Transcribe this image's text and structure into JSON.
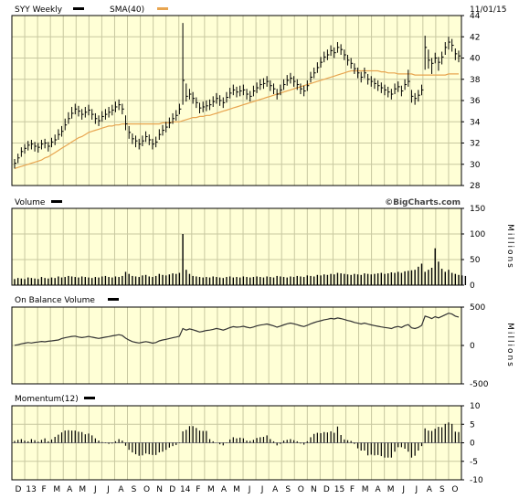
{
  "header": {
    "ticker_label": "SYY Weekly",
    "sma_label": "SMA(40)",
    "date": "11/01/15"
  },
  "watermark": "©BigCharts.com",
  "colors": {
    "panel_bg": "#ffffd6",
    "grid": "#c8c8a0",
    "price": "#000000",
    "sma": "#e8a550",
    "volume": "#000000",
    "border": "#000000"
  },
  "x_axis": {
    "labels": [
      "D",
      "13",
      "F",
      "M",
      "A",
      "M",
      "J",
      "J",
      "A",
      "S",
      "O",
      "N",
      "D",
      "14",
      "F",
      "M",
      "A",
      "M",
      "J",
      "J",
      "A",
      "S",
      "O",
      "N",
      "D",
      "15",
      "F",
      "M",
      "A",
      "M",
      "J",
      "J",
      "A",
      "S",
      "O"
    ]
  },
  "chart_data": [
    {
      "type": "ohlc",
      "title": "SYY Weekly",
      "ylim": [
        28,
        44
      ],
      "yticks": [
        28,
        30,
        32,
        34,
        36,
        38,
        40,
        42,
        44
      ],
      "ytick_labels": [
        "28",
        "30",
        "32",
        "34",
        "36",
        "38",
        "40",
        "42",
        "44"
      ],
      "series": [
        {
          "name": "SYY Weekly",
          "close": [
            30.1,
            30.6,
            31.2,
            31.5,
            31.8,
            31.9,
            31.7,
            31.6,
            31.9,
            32.0,
            31.7,
            32.1,
            32.3,
            32.8,
            33.1,
            33.7,
            34.3,
            34.8,
            35.2,
            35.0,
            34.7,
            34.9,
            35.1,
            34.7,
            34.3,
            34.1,
            34.5,
            34.7,
            34.9,
            35.1,
            35.4,
            35.6,
            35.2,
            33.8,
            33.0,
            32.4,
            32.2,
            31.9,
            32.2,
            32.6,
            32.3,
            31.9,
            32.1,
            32.8,
            33.2,
            33.5,
            33.9,
            34.3,
            34.6,
            35.2,
            37.9,
            36.4,
            36.6,
            36.2,
            35.8,
            35.3,
            35.4,
            35.5,
            35.6,
            35.9,
            36.2,
            36.0,
            35.8,
            36.3,
            36.7,
            37.0,
            36.8,
            36.9,
            37.0,
            36.6,
            36.4,
            36.9,
            37.2,
            37.5,
            37.6,
            37.8,
            37.4,
            37.1,
            36.6,
            37.0,
            37.5,
            37.9,
            38.1,
            37.8,
            37.5,
            37.1,
            36.9,
            37.4,
            38.2,
            38.6,
            39.1,
            39.6,
            40.1,
            40.3,
            40.7,
            40.5,
            41.0,
            40.8,
            40.3,
            39.8,
            39.5,
            39.0,
            38.6,
            38.2,
            38.6,
            38.0,
            37.8,
            37.6,
            37.4,
            37.2,
            37.0,
            36.8,
            36.6,
            37.1,
            37.3,
            36.9,
            37.5,
            37.8,
            36.4,
            36.2,
            36.5,
            37.0,
            41.0,
            39.8,
            39.5,
            40.0,
            39.6,
            40.1,
            41.0,
            41.5,
            41.2,
            40.4,
            40.2
          ],
          "high": [
            30.5,
            31.0,
            31.6,
            31.9,
            32.2,
            32.3,
            32.1,
            32.0,
            32.3,
            32.4,
            32.1,
            32.5,
            32.8,
            33.3,
            33.6,
            34.3,
            34.9,
            35.4,
            35.7,
            35.5,
            35.2,
            35.4,
            35.6,
            35.2,
            34.8,
            34.6,
            35.0,
            35.2,
            35.4,
            35.6,
            35.9,
            36.1,
            35.7,
            34.6,
            33.6,
            32.9,
            32.7,
            32.4,
            32.7,
            33.1,
            32.8,
            32.4,
            32.6,
            33.3,
            33.7,
            34.0,
            34.4,
            34.8,
            35.1,
            35.7,
            43.3,
            37.6,
            37.1,
            36.8,
            36.3,
            35.8,
            35.9,
            36.0,
            36.1,
            36.4,
            36.7,
            36.5,
            36.3,
            36.8,
            37.2,
            37.5,
            37.3,
            37.4,
            37.5,
            37.1,
            36.9,
            37.4,
            37.7,
            38.0,
            38.1,
            38.3,
            37.9,
            37.6,
            37.1,
            37.5,
            38.0,
            38.4,
            38.6,
            38.3,
            38.0,
            37.6,
            37.4,
            37.9,
            38.7,
            39.1,
            39.6,
            40.1,
            40.6,
            40.8,
            41.2,
            41.0,
            41.5,
            41.3,
            40.8,
            40.3,
            40.0,
            39.5,
            39.1,
            38.7,
            39.1,
            38.5,
            38.3,
            38.1,
            37.9,
            37.7,
            37.5,
            37.3,
            37.1,
            37.6,
            37.8,
            37.4,
            38.0,
            38.9,
            37.0,
            36.7,
            37.0,
            37.5,
            42.1,
            40.8,
            40.0,
            40.5,
            40.1,
            40.6,
            41.5,
            42.0,
            41.8,
            40.9,
            40.7
          ],
          "low": [
            29.6,
            30.1,
            30.7,
            31.0,
            31.3,
            31.4,
            31.2,
            31.1,
            31.4,
            31.5,
            31.2,
            31.6,
            31.8,
            32.3,
            32.6,
            33.2,
            33.8,
            34.3,
            34.7,
            34.5,
            34.2,
            34.4,
            34.6,
            34.2,
            33.8,
            33.6,
            34.0,
            34.2,
            34.4,
            34.6,
            34.9,
            35.1,
            34.7,
            33.2,
            32.4,
            31.9,
            31.6,
            31.4,
            31.7,
            32.1,
            31.8,
            31.4,
            31.6,
            32.3,
            32.7,
            33.0,
            33.4,
            33.8,
            34.1,
            34.7,
            35.6,
            35.9,
            36.1,
            35.7,
            35.3,
            34.8,
            34.9,
            35.0,
            35.1,
            35.4,
            35.7,
            35.5,
            35.3,
            35.8,
            36.2,
            36.5,
            36.3,
            36.4,
            36.5,
            36.1,
            35.9,
            36.4,
            36.7,
            37.0,
            37.1,
            37.3,
            36.9,
            36.6,
            36.1,
            36.5,
            37.0,
            37.4,
            37.6,
            37.3,
            37.0,
            36.6,
            36.4,
            36.9,
            37.7,
            38.1,
            38.6,
            39.1,
            39.6,
            39.8,
            40.2,
            40.0,
            40.5,
            40.3,
            39.8,
            39.3,
            39.0,
            38.5,
            38.1,
            37.7,
            38.1,
            37.5,
            37.3,
            37.1,
            36.9,
            36.7,
            36.5,
            36.3,
            36.1,
            36.6,
            36.8,
            36.4,
            37.0,
            37.3,
            35.8,
            35.6,
            35.9,
            36.5,
            38.9,
            39.0,
            38.5,
            39.5,
            38.8,
            39.4,
            40.3,
            40.8,
            40.6,
            39.8,
            39.6
          ]
        },
        {
          "name": "SMA(40)",
          "values": [
            29.6,
            29.7,
            29.8,
            29.9,
            30.0,
            30.1,
            30.2,
            30.3,
            30.4,
            30.6,
            30.7,
            30.9,
            31.1,
            31.3,
            31.5,
            31.7,
            31.9,
            32.1,
            32.3,
            32.5,
            32.6,
            32.8,
            33.0,
            33.1,
            33.2,
            33.3,
            33.4,
            33.5,
            33.6,
            33.6,
            33.7,
            33.7,
            33.8,
            33.8,
            33.8,
            33.8,
            33.8,
            33.8,
            33.8,
            33.8,
            33.8,
            33.8,
            33.8,
            33.8,
            33.9,
            33.9,
            33.9,
            34.0,
            34.0,
            34.0,
            34.1,
            34.2,
            34.3,
            34.4,
            34.4,
            34.5,
            34.5,
            34.6,
            34.6,
            34.7,
            34.8,
            34.9,
            35.0,
            35.1,
            35.2,
            35.3,
            35.4,
            35.5,
            35.6,
            35.7,
            35.8,
            35.9,
            36.0,
            36.1,
            36.2,
            36.3,
            36.4,
            36.5,
            36.6,
            36.7,
            36.8,
            36.9,
            37.0,
            37.1,
            37.2,
            37.3,
            37.4,
            37.5,
            37.6,
            37.7,
            37.8,
            37.9,
            38.0,
            38.1,
            38.2,
            38.3,
            38.4,
            38.5,
            38.6,
            38.7,
            38.8,
            38.8,
            38.8,
            38.8,
            38.8,
            38.8,
            38.8,
            38.8,
            38.8,
            38.7,
            38.7,
            38.6,
            38.6,
            38.6,
            38.5,
            38.5,
            38.5,
            38.5,
            38.5,
            38.4,
            38.4,
            38.4,
            38.4,
            38.4,
            38.4,
            38.4,
            38.4,
            38.4,
            38.4,
            38.5,
            38.5,
            38.5,
            38.5
          ]
        }
      ]
    },
    {
      "type": "bar",
      "title": "Volume",
      "ylabel": "Millions",
      "ylim": [
        0,
        150
      ],
      "yticks": [
        0,
        50,
        100,
        150
      ],
      "ytick_labels": [
        "0",
        "50",
        "100",
        "150"
      ],
      "values": [
        12,
        14,
        13,
        12,
        15,
        14,
        13,
        12,
        16,
        14,
        13,
        15,
        14,
        17,
        15,
        16,
        18,
        17,
        16,
        15,
        17,
        16,
        15,
        14,
        16,
        15,
        17,
        18,
        16,
        15,
        17,
        16,
        18,
        26,
        22,
        18,
        17,
        16,
        19,
        20,
        17,
        16,
        18,
        22,
        20,
        19,
        21,
        23,
        22,
        24,
        100,
        30,
        22,
        18,
        17,
        16,
        15,
        16,
        15,
        17,
        16,
        15,
        14,
        16,
        17,
        15,
        16,
        15,
        17,
        16,
        15,
        16,
        17,
        16,
        15,
        17,
        16,
        15,
        18,
        17,
        16,
        15,
        17,
        16,
        18,
        17,
        16,
        19,
        18,
        17,
        20,
        19,
        21,
        20,
        22,
        21,
        24,
        23,
        22,
        21,
        20,
        22,
        21,
        20,
        23,
        22,
        21,
        22,
        23,
        24,
        22,
        23,
        25,
        24,
        26,
        24,
        27,
        28,
        29,
        30,
        36,
        42,
        26,
        30,
        34,
        72,
        46,
        32,
        26,
        30,
        24,
        22,
        20,
        19,
        18
      ]
    },
    {
      "type": "line",
      "title": "On Balance Volume",
      "ylabel": "Millions",
      "ylim": [
        -500,
        500
      ],
      "yticks": [
        -500,
        0,
        500
      ],
      "ytick_labels": [
        "-500",
        "0",
        "500"
      ],
      "values": [
        2,
        10,
        22,
        30,
        38,
        32,
        40,
        45,
        52,
        48,
        55,
        60,
        66,
        72,
        90,
        100,
        110,
        118,
        122,
        110,
        102,
        110,
        118,
        108,
        100,
        92,
        100,
        108,
        116,
        125,
        132,
        140,
        130,
        95,
        70,
        50,
        40,
        32,
        42,
        50,
        42,
        30,
        38,
        60,
        72,
        80,
        90,
        100,
        110,
        120,
        220,
        200,
        215,
        205,
        190,
        175,
        185,
        195,
        200,
        210,
        222,
        212,
        200,
        215,
        232,
        245,
        238,
        242,
        250,
        238,
        228,
        240,
        255,
        265,
        272,
        280,
        268,
        255,
        238,
        252,
        268,
        282,
        292,
        282,
        270,
        256,
        246,
        262,
        282,
        298,
        312,
        322,
        335,
        342,
        352,
        345,
        358,
        350,
        338,
        325,
        315,
        300,
        290,
        280,
        292,
        278,
        268,
        258,
        250,
        242,
        235,
        228,
        220,
        238,
        248,
        235,
        258,
        272,
        230,
        220,
        235,
        262,
        382,
        368,
        350,
        375,
        360,
        378,
        400,
        420,
        410,
        382,
        370
      ]
    },
    {
      "type": "bar",
      "title": "Momentum(12)",
      "ylim": [
        -10,
        10
      ],
      "yticks": [
        -10,
        -5,
        0,
        5,
        10
      ],
      "ytick_labels": [
        "-10",
        "-5",
        "0",
        "5",
        "10"
      ],
      "values": [
        0.5,
        0.8,
        1.0,
        0.6,
        0.4,
        1.0,
        0.7,
        0.3,
        0.8,
        1.2,
        0.4,
        0.9,
        1.6,
        2.2,
        2.8,
        3.3,
        3.4,
        3.3,
        3.3,
        3.0,
        2.9,
        2.3,
        2.5,
        2.0,
        1.2,
        0.6,
        0.2,
        0.1,
        -0.3,
        -0.2,
        0.4,
        1.0,
        0.6,
        -0.8,
        -1.9,
        -2.6,
        -3.1,
        -3.5,
        -3.4,
        -2.9,
        -3.1,
        -3.3,
        -3.3,
        -2.6,
        -2.4,
        -1.9,
        -1.3,
        -0.9,
        -0.6,
        0.1,
        3.1,
        3.5,
        4.5,
        4.5,
        4.0,
        3.3,
        3.2,
        3.2,
        1.0,
        0.4,
        0.0,
        -0.4,
        -0.7,
        -0.1,
        0.9,
        1.5,
        1.2,
        1.4,
        1.2,
        0.6,
        0.5,
        0.8,
        1.3,
        1.5,
        1.6,
        2.0,
        1.0,
        0.4,
        -0.7,
        -0.3,
        0.6,
        0.8,
        1.0,
        0.7,
        0.4,
        -0.2,
        -0.5,
        0.4,
        1.5,
        2.4,
        2.7,
        2.6,
        2.9,
        2.8,
        3.1,
        2.7,
        4.4,
        2.1,
        0.9,
        0.7,
        0.5,
        -0.3,
        -1.5,
        -2.1,
        -2.1,
        -3.4,
        -3.2,
        -3.4,
        -3.3,
        -3.6,
        -4.0,
        -4.0,
        -4.0,
        -2.4,
        -1.2,
        -1.2,
        -1.6,
        -2.4,
        -4.0,
        -3.5,
        -2.1,
        -0.9,
        3.9,
        3.3,
        3.2,
        3.8,
        4.3,
        4.2,
        5.1,
        5.5,
        5.1,
        3.0,
        2.9
      ]
    }
  ]
}
